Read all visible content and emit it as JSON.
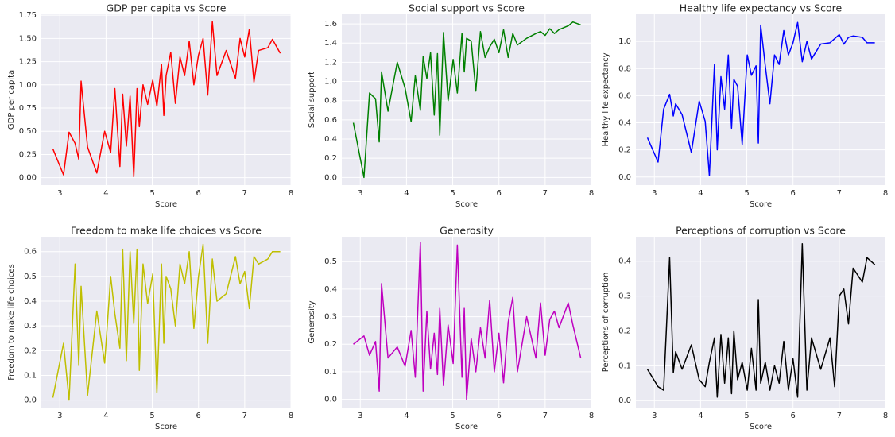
{
  "chart_data": [
    {
      "type": "line",
      "title": "GDP per capita vs Score",
      "xlabel": "Score",
      "ylabel": "GDP per capita",
      "color": "#ff0000",
      "x": [
        2.85,
        3.08,
        3.2,
        3.33,
        3.41,
        3.46,
        3.6,
        3.8,
        3.97,
        4.1,
        4.19,
        4.3,
        4.36,
        4.44,
        4.52,
        4.6,
        4.67,
        4.72,
        4.8,
        4.9,
        5.01,
        5.1,
        5.2,
        5.25,
        5.3,
        5.4,
        5.5,
        5.6,
        5.7,
        5.8,
        5.9,
        6.0,
        6.1,
        6.2,
        6.3,
        6.4,
        6.6,
        6.8,
        6.9,
        7.0,
        7.1,
        7.2,
        7.3,
        7.5,
        7.6,
        7.77
      ],
      "values": [
        0.31,
        0.03,
        0.49,
        0.37,
        0.2,
        1.04,
        0.33,
        0.05,
        0.5,
        0.27,
        0.96,
        0.12,
        0.9,
        0.34,
        0.88,
        0.01,
        0.96,
        0.55,
        1.0,
        0.79,
        1.05,
        0.77,
        1.22,
        0.67,
        1.1,
        1.35,
        0.8,
        1.3,
        1.1,
        1.47,
        1.0,
        1.32,
        1.5,
        0.89,
        1.68,
        1.1,
        1.37,
        1.07,
        1.5,
        1.3,
        1.6,
        1.03,
        1.37,
        1.4,
        1.49,
        1.34
      ],
      "xlim": [
        2.6,
        8.0
      ],
      "xticks": [
        3,
        4,
        5,
        6,
        7,
        8
      ],
      "ylim": [
        -0.08,
        1.76
      ],
      "yticks": [
        {
          "value": 0,
          "label": "0.00"
        },
        {
          "value": 0.25,
          "label": "0.25"
        },
        {
          "value": 0.5,
          "label": "0.50"
        },
        {
          "value": 0.75,
          "label": "0.75"
        },
        {
          "value": 1,
          "label": "1.00"
        },
        {
          "value": 1.25,
          "label": "1.25"
        },
        {
          "value": 1.5,
          "label": "1.50"
        },
        {
          "value": 1.75,
          "label": "1.75"
        }
      ],
      "grid": true
    },
    {
      "type": "line",
      "title": "Social support vs Score",
      "xlabel": "Score",
      "ylabel": "Social support",
      "color": "#008000",
      "x": [
        2.85,
        3.08,
        3.2,
        3.33,
        3.41,
        3.46,
        3.6,
        3.8,
        3.97,
        4.1,
        4.19,
        4.3,
        4.36,
        4.44,
        4.52,
        4.6,
        4.67,
        4.72,
        4.8,
        4.9,
        5.01,
        5.1,
        5.2,
        5.25,
        5.3,
        5.4,
        5.5,
        5.6,
        5.7,
        5.8,
        5.9,
        6.0,
        6.1,
        6.2,
        6.3,
        6.4,
        6.6,
        6.8,
        6.9,
        7.0,
        7.1,
        7.2,
        7.3,
        7.5,
        7.6,
        7.77
      ],
      "values": [
        0.57,
        0.0,
        0.88,
        0.82,
        0.37,
        1.1,
        0.69,
        1.2,
        0.93,
        0.58,
        1.06,
        0.7,
        1.26,
        1.03,
        1.3,
        0.65,
        1.29,
        0.44,
        1.51,
        0.8,
        1.23,
        0.88,
        1.5,
        1.1,
        1.45,
        1.42,
        0.9,
        1.52,
        1.25,
        1.36,
        1.44,
        1.3,
        1.54,
        1.25,
        1.5,
        1.38,
        1.45,
        1.5,
        1.52,
        1.48,
        1.55,
        1.5,
        1.54,
        1.58,
        1.62,
        1.59
      ],
      "xlim": [
        2.6,
        8.0
      ],
      "xticks": [
        3,
        4,
        5,
        6,
        7,
        8
      ],
      "ylim": [
        -0.08,
        1.7
      ],
      "yticks": [
        {
          "value": 0,
          "label": "0.0"
        },
        {
          "value": 0.2,
          "label": "0.2"
        },
        {
          "value": 0.4,
          "label": "0.4"
        },
        {
          "value": 0.6,
          "label": "0.6"
        },
        {
          "value": 0.8,
          "label": "0.8"
        },
        {
          "value": 1,
          "label": "1.0"
        },
        {
          "value": 1.2,
          "label": "1.2"
        },
        {
          "value": 1.4,
          "label": "1.4"
        },
        {
          "value": 1.6,
          "label": "1.6"
        }
      ],
      "grid": true
    },
    {
      "type": "line",
      "title": "Healthy life expectancy vs Score",
      "xlabel": "Score",
      "ylabel": "Healthy life expectancy",
      "color": "#0000ff",
      "x": [
        2.85,
        3.08,
        3.2,
        3.33,
        3.41,
        3.46,
        3.6,
        3.8,
        3.97,
        4.1,
        4.19,
        4.3,
        4.36,
        4.44,
        4.52,
        4.6,
        4.67,
        4.72,
        4.8,
        4.9,
        5.01,
        5.1,
        5.2,
        5.25,
        5.3,
        5.4,
        5.5,
        5.6,
        5.7,
        5.8,
        5.9,
        6.0,
        6.1,
        6.2,
        6.3,
        6.4,
        6.6,
        6.8,
        6.9,
        7.0,
        7.1,
        7.2,
        7.3,
        7.5,
        7.6,
        7.77
      ],
      "values": [
        0.29,
        0.11,
        0.5,
        0.61,
        0.45,
        0.54,
        0.46,
        0.18,
        0.56,
        0.41,
        0.01,
        0.83,
        0.2,
        0.74,
        0.5,
        0.9,
        0.36,
        0.72,
        0.67,
        0.24,
        0.9,
        0.75,
        0.82,
        0.25,
        1.12,
        0.82,
        0.54,
        0.9,
        0.83,
        1.08,
        0.9,
        0.99,
        1.14,
        0.85,
        1.0,
        0.87,
        0.98,
        0.99,
        1.02,
        1.05,
        0.98,
        1.03,
        1.04,
        1.03,
        0.99,
        0.99
      ],
      "xlim": [
        2.6,
        8.0
      ],
      "xticks": [
        3,
        4,
        5,
        6,
        7,
        8
      ],
      "ylim": [
        -0.06,
        1.2
      ],
      "yticks": [
        {
          "value": 0,
          "label": "0.0"
        },
        {
          "value": 0.2,
          "label": "0.2"
        },
        {
          "value": 0.4,
          "label": "0.4"
        },
        {
          "value": 0.6,
          "label": "0.6"
        },
        {
          "value": 0.8,
          "label": "0.8"
        },
        {
          "value": 1,
          "label": "1.0"
        }
      ],
      "grid": true
    },
    {
      "type": "line",
      "title": "Freedom to make life choices vs Score",
      "xlabel": "Score",
      "ylabel": "Freedom to make life choices",
      "color": "#bfbf00",
      "x": [
        2.85,
        3.08,
        3.2,
        3.33,
        3.41,
        3.46,
        3.6,
        3.8,
        3.97,
        4.1,
        4.19,
        4.3,
        4.36,
        4.44,
        4.52,
        4.6,
        4.67,
        4.72,
        4.8,
        4.9,
        5.01,
        5.1,
        5.2,
        5.25,
        5.3,
        5.4,
        5.5,
        5.6,
        5.7,
        5.8,
        5.9,
        6.0,
        6.1,
        6.2,
        6.3,
        6.4,
        6.6,
        6.8,
        6.9,
        7.0,
        7.1,
        7.2,
        7.3,
        7.5,
        7.6,
        7.77
      ],
      "values": [
        0.01,
        0.23,
        0.0,
        0.55,
        0.14,
        0.46,
        0.02,
        0.36,
        0.15,
        0.5,
        0.35,
        0.21,
        0.61,
        0.16,
        0.6,
        0.31,
        0.61,
        0.12,
        0.55,
        0.39,
        0.51,
        0.03,
        0.55,
        0.23,
        0.5,
        0.45,
        0.3,
        0.55,
        0.47,
        0.6,
        0.29,
        0.5,
        0.63,
        0.23,
        0.57,
        0.4,
        0.43,
        0.58,
        0.47,
        0.52,
        0.37,
        0.58,
        0.55,
        0.57,
        0.6,
        0.6
      ],
      "xlim": [
        2.6,
        8.0
      ],
      "xticks": [
        3,
        4,
        5,
        6,
        7,
        8
      ],
      "ylim": [
        -0.03,
        0.66
      ],
      "yticks": [
        {
          "value": 0,
          "label": "0.0"
        },
        0.1,
        0.2,
        0.3,
        0.4,
        0.5,
        0.6
      ],
      "grid": true
    },
    {
      "type": "line",
      "title": "Generosity",
      "xlabel": "Score",
      "ylabel": "Generosity",
      "color": "#bf00bf",
      "x": [
        2.85,
        3.08,
        3.2,
        3.33,
        3.41,
        3.46,
        3.6,
        3.8,
        3.97,
        4.1,
        4.19,
        4.3,
        4.36,
        4.44,
        4.52,
        4.6,
        4.67,
        4.72,
        4.8,
        4.9,
        5.01,
        5.1,
        5.2,
        5.25,
        5.3,
        5.4,
        5.5,
        5.6,
        5.7,
        5.8,
        5.9,
        6.0,
        6.1,
        6.2,
        6.3,
        6.4,
        6.6,
        6.8,
        6.9,
        7.0,
        7.1,
        7.2,
        7.3,
        7.5,
        7.6,
        7.77
      ],
      "values": [
        0.2,
        0.23,
        0.16,
        0.21,
        0.03,
        0.42,
        0.15,
        0.19,
        0.12,
        0.25,
        0.08,
        0.57,
        0.03,
        0.32,
        0.11,
        0.24,
        0.09,
        0.33,
        0.05,
        0.27,
        0.13,
        0.56,
        0.08,
        0.33,
        0.0,
        0.22,
        0.1,
        0.26,
        0.15,
        0.36,
        0.1,
        0.24,
        0.06,
        0.28,
        0.37,
        0.1,
        0.3,
        0.15,
        0.35,
        0.16,
        0.29,
        0.32,
        0.26,
        0.35,
        0.27,
        0.15
      ],
      "xlim": [
        2.6,
        8.0
      ],
      "xticks": [
        3,
        4,
        5,
        6,
        7,
        8
      ],
      "ylim": [
        -0.03,
        0.59
      ],
      "yticks": [
        {
          "value": 0,
          "label": "0.0"
        },
        0.1,
        0.2,
        0.3,
        0.4,
        0.5
      ],
      "grid": true
    },
    {
      "type": "line",
      "title": "Perceptions of corruption vs Score",
      "xlabel": "Score",
      "ylabel": "Perceptions of corruption",
      "color": "#000000",
      "x": [
        2.85,
        3.08,
        3.2,
        3.33,
        3.41,
        3.46,
        3.6,
        3.8,
        3.97,
        4.1,
        4.19,
        4.3,
        4.36,
        4.44,
        4.52,
        4.6,
        4.67,
        4.72,
        4.8,
        4.9,
        5.01,
        5.1,
        5.2,
        5.25,
        5.3,
        5.4,
        5.5,
        5.6,
        5.7,
        5.8,
        5.9,
        6.0,
        6.1,
        6.2,
        6.3,
        6.4,
        6.6,
        6.8,
        6.9,
        7.0,
        7.1,
        7.2,
        7.3,
        7.5,
        7.6,
        7.77
      ],
      "values": [
        0.09,
        0.04,
        0.03,
        0.41,
        0.08,
        0.14,
        0.09,
        0.16,
        0.06,
        0.04,
        0.11,
        0.18,
        0.01,
        0.19,
        0.05,
        0.18,
        0.02,
        0.2,
        0.06,
        0.11,
        0.03,
        0.15,
        0.03,
        0.29,
        0.05,
        0.11,
        0.03,
        0.1,
        0.05,
        0.17,
        0.03,
        0.12,
        0.01,
        0.45,
        0.03,
        0.18,
        0.09,
        0.18,
        0.04,
        0.3,
        0.32,
        0.22,
        0.38,
        0.34,
        0.41,
        0.39
      ],
      "xlim": [
        2.6,
        8.0
      ],
      "xticks": [
        3,
        4,
        5,
        6,
        7,
        8
      ],
      "ylim": [
        -0.02,
        0.47
      ],
      "yticks": [
        {
          "value": 0,
          "label": "0.0"
        },
        0.1,
        0.2,
        0.3,
        0.4
      ],
      "grid": true
    }
  ]
}
